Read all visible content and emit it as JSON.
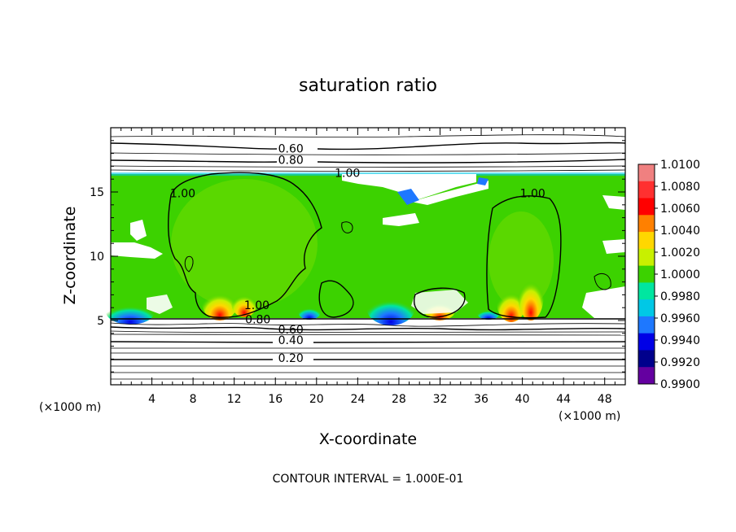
{
  "chart_data": {
    "type": "heatmap",
    "title": "saturation ratio",
    "xlabel": "X-coordinate",
    "ylabel": "Z-coordinate",
    "x_unit": "(×1000 m)",
    "z_unit": "(×1000 m)",
    "xlim": [
      0,
      50
    ],
    "ylim": [
      0,
      20
    ],
    "x_ticks": [
      "4",
      "8",
      "12",
      "16",
      "20",
      "24",
      "28",
      "32",
      "36",
      "40",
      "44",
      "48"
    ],
    "y_ticks": [
      "5",
      "10",
      "15"
    ],
    "note": "CONTOUR INTERVAL = 1.000E-01",
    "colorbar": {
      "range": [
        0.99,
        1.01
      ],
      "labels": [
        "1.0100",
        "1.0080",
        "1.0060",
        "1.0040",
        "1.0020",
        "1.0000",
        "0.9980",
        "0.9960",
        "0.9940",
        "0.9920",
        "0.9900"
      ],
      "colors": [
        "#f08080",
        "#ff3030",
        "#ff0000",
        "#ff8000",
        "#ffd700",
        "#c8f000",
        "#3cd200",
        "#00e6a0",
        "#00c8e6",
        "#1e78ff",
        "#0000e6",
        "#00008c",
        "#6400a0"
      ]
    },
    "contour_labels": [
      {
        "text": "0.60",
        "x": 17.5,
        "y": 18.2
      },
      {
        "text": "0.80",
        "x": 17.5,
        "y": 17.3
      },
      {
        "text": "1.00",
        "x": 23.0,
        "y": 16.3
      },
      {
        "text": "1.00",
        "x": 7.0,
        "y": 14.7
      },
      {
        "text": "1.00",
        "x": 41.0,
        "y": 14.7
      },
      {
        "text": "1.00",
        "x": 14.2,
        "y": 6.0
      },
      {
        "text": "0.80",
        "x": 14.3,
        "y": 4.9
      },
      {
        "text": "0.60",
        "x": 17.5,
        "y": 4.1
      },
      {
        "text": "0.40",
        "x": 17.5,
        "y": 3.3
      },
      {
        "text": "0.20",
        "x": 17.5,
        "y": 1.9
      }
    ]
  }
}
